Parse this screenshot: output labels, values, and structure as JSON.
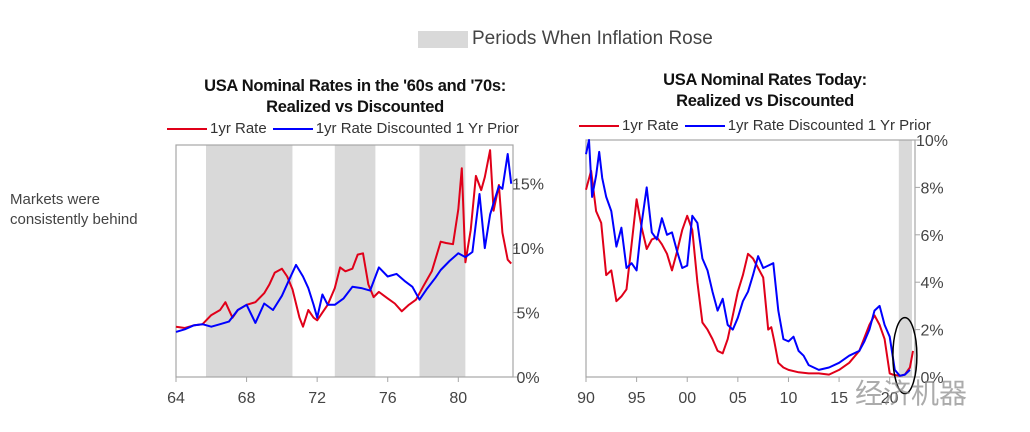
{
  "top_legend": {
    "label": "Periods When Inflation Rose",
    "color": "#d9d9d9"
  },
  "annotation": {
    "line1": "Markets were",
    "line2": "consistently behind"
  },
  "watermark": "经济机器",
  "chart_data": [
    {
      "type": "line",
      "title_line1": "USA Nominal Rates in the '60s and '70s:",
      "title_line2": "Realized vs Discounted",
      "legend": [
        {
          "name": "1yr Rate",
          "color": "#e00019"
        },
        {
          "name": "1yr Rate Discounted 1 Yr Prior",
          "color": "#0000ff"
        }
      ],
      "xlim": [
        1964,
        1983.1
      ],
      "ylim": [
        0,
        18
      ],
      "x_ticks": [
        {
          "v": 1964,
          "label": "64"
        },
        {
          "v": 1968,
          "label": "68"
        },
        {
          "v": 1972,
          "label": "72"
        },
        {
          "v": 1976,
          "label": "76"
        },
        {
          "v": 1980,
          "label": "80"
        }
      ],
      "y_ticks": [
        {
          "v": 0,
          "label": "0%"
        },
        {
          "v": 5,
          "label": "5%"
        },
        {
          "v": 10,
          "label": "10%"
        },
        {
          "v": 15,
          "label": "15%"
        }
      ],
      "y_axis_side": "right",
      "shaded_periods": [
        [
          1965.7,
          1970.6
        ],
        [
          1973.0,
          1975.3
        ],
        [
          1977.8,
          1980.4
        ]
      ],
      "series": [
        {
          "name": "1yr Rate",
          "color": "#e00019",
          "x": [
            1964,
            1964.5,
            1965,
            1965.5,
            1966,
            1966.5,
            1966.8,
            1967.2,
            1967.5,
            1968,
            1968.5,
            1969,
            1969.3,
            1969.6,
            1970,
            1970.3,
            1970.6,
            1971,
            1971.2,
            1971.5,
            1971.8,
            1972,
            1972.3,
            1972.6,
            1973,
            1973.3,
            1973.6,
            1974,
            1974.3,
            1974.6,
            1974.9,
            1975.2,
            1975.5,
            1976,
            1976.4,
            1976.8,
            1977.2,
            1977.6,
            1978,
            1978.5,
            1979,
            1979.3,
            1979.7,
            1980,
            1980.2,
            1980.4,
            1980.7,
            1981,
            1981.3,
            1981.5,
            1981.8,
            1982,
            1982.3,
            1982.5,
            1982.8,
            1983
          ],
          "values": [
            3.9,
            3.8,
            4.0,
            4.1,
            4.8,
            5.2,
            5.8,
            4.6,
            5.2,
            5.6,
            5.8,
            6.5,
            7.2,
            8.1,
            8.4,
            7.8,
            6.8,
            4.6,
            3.9,
            5.2,
            4.6,
            4.4,
            5.0,
            5.6,
            6.9,
            8.5,
            8.2,
            8.4,
            9.5,
            9.6,
            7.2,
            6.2,
            6.6,
            6.1,
            5.7,
            5.1,
            5.6,
            6.0,
            7.0,
            8.2,
            10.5,
            10.4,
            10.3,
            13.0,
            16.2,
            8.9,
            11.4,
            15.6,
            14.5,
            15.5,
            17.6,
            12.9,
            14.9,
            11.2,
            9.1,
            8.8
          ]
        },
        {
          "name": "1yr Rate Discounted 1 Yr Prior",
          "color": "#0000ff",
          "x": [
            1964,
            1964.5,
            1965,
            1965.5,
            1966,
            1966.5,
            1967,
            1967.5,
            1968,
            1968.5,
            1969,
            1969.5,
            1970,
            1970.4,
            1970.8,
            1971.2,
            1971.5,
            1971.8,
            1972,
            1972.3,
            1972.6,
            1973,
            1973.5,
            1974,
            1974.5,
            1975,
            1975.5,
            1976,
            1976.5,
            1977,
            1977.4,
            1977.8,
            1978.2,
            1978.7,
            1979,
            1979.5,
            1980,
            1980.4,
            1980.8,
            1981.2,
            1981.5,
            1981.8,
            1982,
            1982.3,
            1982.5,
            1982.8,
            1983
          ],
          "values": [
            3.5,
            3.7,
            4.0,
            4.1,
            3.9,
            4.1,
            4.3,
            5.2,
            5.6,
            4.2,
            5.7,
            5.2,
            6.3,
            7.5,
            8.7,
            7.8,
            6.9,
            5.6,
            4.6,
            6.4,
            5.6,
            5.6,
            6.1,
            7.0,
            6.9,
            6.7,
            8.5,
            7.8,
            8.0,
            7.4,
            7.0,
            6.0,
            6.8,
            7.7,
            8.3,
            9.0,
            9.6,
            9.3,
            9.7,
            14.2,
            10.0,
            12.6,
            13.5,
            14.8,
            14.6,
            17.3,
            15.0
          ]
        }
      ]
    },
    {
      "type": "line",
      "title_line1": "USA Nominal Rates Today:",
      "title_line2": "Realized vs Discounted",
      "legend": [
        {
          "name": "1yr Rate",
          "color": "#e00019"
        },
        {
          "name": "1yr Rate Discounted 1 Yr Prior",
          "color": "#0000ff"
        }
      ],
      "xlim": [
        1990,
        2022.5
      ],
      "ylim": [
        0,
        10
      ],
      "x_ticks": [
        {
          "v": 1990,
          "label": "90"
        },
        {
          "v": 1995,
          "label": "95"
        },
        {
          "v": 2000,
          "label": "00"
        },
        {
          "v": 2005,
          "label": "05"
        },
        {
          "v": 2010,
          "label": "10"
        },
        {
          "v": 2015,
          "label": "15"
        },
        {
          "v": 2020,
          "label": "20"
        }
      ],
      "y_ticks": [
        {
          "v": 0,
          "label": "0%"
        },
        {
          "v": 2,
          "label": "2%"
        },
        {
          "v": 4,
          "label": "4%"
        },
        {
          "v": 6,
          "label": "6%"
        },
        {
          "v": 8,
          "label": "8%"
        },
        {
          "v": 10,
          "label": "10%"
        }
      ],
      "y_axis_side": "right",
      "shaded_periods": [
        [
          2020.9,
          2022.2
        ]
      ],
      "highlight": "ellipse around 2020-2022",
      "series": [
        {
          "name": "1yr Rate",
          "color": "#e00019",
          "x": [
            1990,
            1990.5,
            1991,
            1991.5,
            1992,
            1992.5,
            1993,
            1993.5,
            1994,
            1994.5,
            1995,
            1995.5,
            1996,
            1996.5,
            1997,
            1997.5,
            1998,
            1998.5,
            1999,
            1999.5,
            2000,
            2000.5,
            2001,
            2001.5,
            2002,
            2002.5,
            2003,
            2003.5,
            2004,
            2004.5,
            2005,
            2005.5,
            2006,
            2006.5,
            2007,
            2007.5,
            2008,
            2008.3,
            2008.6,
            2009,
            2009.5,
            2010,
            2011,
            2012,
            2013,
            2014,
            2015,
            2016,
            2017,
            2018,
            2018.5,
            2019,
            2019.5,
            2020,
            2020.3,
            2021,
            2021.5,
            2022,
            2022.3
          ],
          "values": [
            7.9,
            8.7,
            7.0,
            6.5,
            4.3,
            4.5,
            3.2,
            3.4,
            3.7,
            5.6,
            7.5,
            6.3,
            5.4,
            5.8,
            5.9,
            5.6,
            5.2,
            4.5,
            5.3,
            6.2,
            6.8,
            6.2,
            4.0,
            2.3,
            2.0,
            1.6,
            1.1,
            1.0,
            1.6,
            2.6,
            3.6,
            4.3,
            5.2,
            5.0,
            4.6,
            4.2,
            2.0,
            2.1,
            1.5,
            0.6,
            0.4,
            0.3,
            0.2,
            0.15,
            0.15,
            0.1,
            0.3,
            0.6,
            1.1,
            2.2,
            2.6,
            2.2,
            1.6,
            0.15,
            0.1,
            0.05,
            0.1,
            0.4,
            1.1
          ]
        },
        {
          "name": "1yr Rate Discounted 1 Yr Prior",
          "color": "#0000ff",
          "x": [
            1990,
            1990.3,
            1990.6,
            1991,
            1991.3,
            1991.6,
            1992,
            1992.5,
            1993,
            1993.5,
            1994,
            1994.5,
            1995,
            1995.5,
            1996,
            1996.5,
            1997,
            1997.5,
            1998,
            1998.5,
            1999,
            1999.5,
            2000,
            2000.5,
            2001,
            2001.5,
            2002,
            2002.5,
            2003,
            2003.5,
            2004,
            2004.5,
            2005,
            2005.5,
            2006,
            2006.5,
            2007,
            2007.5,
            2008,
            2008.5,
            2009,
            2009.5,
            2010,
            2010.5,
            2011,
            2011.5,
            2012,
            2013,
            2014,
            2015,
            2016,
            2017,
            2017.5,
            2018,
            2018.5,
            2019,
            2019.5,
            2020,
            2020.5,
            2021,
            2021.5,
            2022
          ],
          "values": [
            9.4,
            10.0,
            7.6,
            8.5,
            9.5,
            8.4,
            7.6,
            7.0,
            5.5,
            6.3,
            4.6,
            4.8,
            4.5,
            6.5,
            8.0,
            6.1,
            5.8,
            6.7,
            6.0,
            6.1,
            5.3,
            4.6,
            4.7,
            6.8,
            6.5,
            5.0,
            4.5,
            3.6,
            2.8,
            3.3,
            2.2,
            2.0,
            2.5,
            3.2,
            3.6,
            4.3,
            5.1,
            4.6,
            4.7,
            4.8,
            2.8,
            1.6,
            1.5,
            1.7,
            1.1,
            0.9,
            0.5,
            0.3,
            0.4,
            0.6,
            0.9,
            1.1,
            1.5,
            2.0,
            2.8,
            3.0,
            2.2,
            1.7,
            0.3,
            0.05,
            0.1,
            0.3
          ]
        }
      ]
    }
  ]
}
